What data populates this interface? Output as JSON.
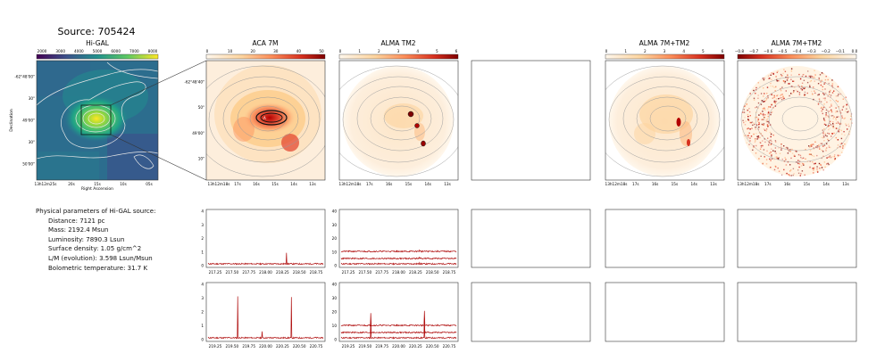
{
  "header": {
    "source_title": "Source: 705424"
  },
  "panels": {
    "higal": {
      "title": "Hi-GAL",
      "cbar_ticks": [
        "2000",
        "3000",
        "4000",
        "5000",
        "6000",
        "7000",
        "8000"
      ],
      "xlabel": "Right Ascension",
      "ylabel": "Declination",
      "x_ticks": [
        "13h12m25s",
        "20s",
        "15s",
        "10s",
        "05s"
      ],
      "y_ticks": [
        "-62°48'00\"",
        "30\"",
        "49'00\"",
        "30\"",
        "50'00\""
      ]
    },
    "aca": {
      "title": "ACA 7M",
      "cbar_ticks": [
        "0",
        "10",
        "20",
        "30",
        "40",
        "50"
      ],
      "x_ticks": [
        "13h12m18s",
        "17s",
        "16s",
        "15s",
        "14s",
        "13s"
      ],
      "y_ticks": [
        "-62°48'40\"",
        "50\"",
        "49'00\"",
        "10\""
      ]
    },
    "tm2": {
      "title": "ALMA TM2",
      "cbar_ticks": [
        "0",
        "1",
        "2",
        "3",
        "4",
        "5",
        "6"
      ],
      "x_ticks": [
        "13h12m18s",
        "17s",
        "16s",
        "15s",
        "14s",
        "13s"
      ]
    },
    "combo": {
      "title": "ALMA 7M+TM2",
      "cbar_ticks": [
        "0",
        "1",
        "2",
        "3",
        "4",
        "5",
        "6"
      ],
      "x_ticks": [
        "13h12m18s",
        "17s",
        "16s",
        "15s",
        "14s",
        "13s"
      ]
    },
    "diff": {
      "title": "ALMA 7M+TM2",
      "cbar_ticks": [
        "−0.8",
        "−0.7",
        "−0.6",
        "−0.5",
        "−0.4",
        "−0.3",
        "−0.2",
        "−0.1",
        "0.0"
      ],
      "x_ticks": [
        "13h12m18s",
        "17s",
        "16s",
        "15s",
        "14s",
        "13s"
      ]
    }
  },
  "spectra": {
    "row1": {
      "x_ticks": [
        "217.25",
        "217.50",
        "217.75",
        "218.00",
        "218.25",
        "218.50",
        "218.75"
      ],
      "aca_y_ticks": [
        "0",
        "1",
        "2",
        "3",
        "4"
      ],
      "tm2_y_ticks": [
        "0",
        "10",
        "20",
        "30",
        "40"
      ]
    },
    "row2": {
      "x_ticks": [
        "219.25",
        "219.50",
        "219.75",
        "220.00",
        "220.25",
        "220.50",
        "220.75"
      ],
      "aca_y_ticks": [
        "0",
        "1",
        "2",
        "3",
        "4"
      ],
      "tm2_y_ticks": [
        "0",
        "10",
        "20",
        "30",
        "40"
      ]
    }
  },
  "params": {
    "heading": "Physical parameters of Hi-GAL source:",
    "items": [
      "Distance: 7121 pc",
      "Mass: 2192.4 Msun",
      "Luminosity: 7890.3 Lsun",
      "Surface density: 1.05 g/cm^2",
      "L/M (evolution): 3.598 Lsun/Msun",
      "Bolometric temperature: 31.7 K"
    ]
  },
  "colors": {
    "heat_dark": "#7f0000",
    "heat_light": "#fff7ec",
    "spectrum": "#b01010",
    "frame": "#444444"
  }
}
